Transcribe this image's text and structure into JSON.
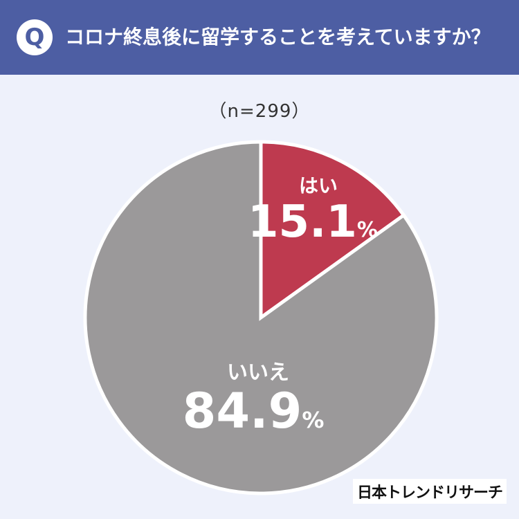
{
  "header": {
    "badge": "Q",
    "question": "コロナ終息後に留学することを考えていますか？"
  },
  "sample_size": "（n=299）",
  "brand": "日本トレンドリサーチ",
  "colors": {
    "header_bg": "#4d5ea3",
    "background": "#eef1fb",
    "yes": "#be3a4f",
    "no": "#9b999a"
  },
  "chart_data": {
    "type": "pie",
    "categories": [
      "はい",
      "いいえ"
    ],
    "values": [
      15.1,
      84.9
    ],
    "value_labels": [
      "15.1",
      "84.9"
    ],
    "unit": "%",
    "colors": [
      "#be3a4f",
      "#9b999a"
    ],
    "start": "12 o'clock",
    "direction": "clockwise"
  }
}
